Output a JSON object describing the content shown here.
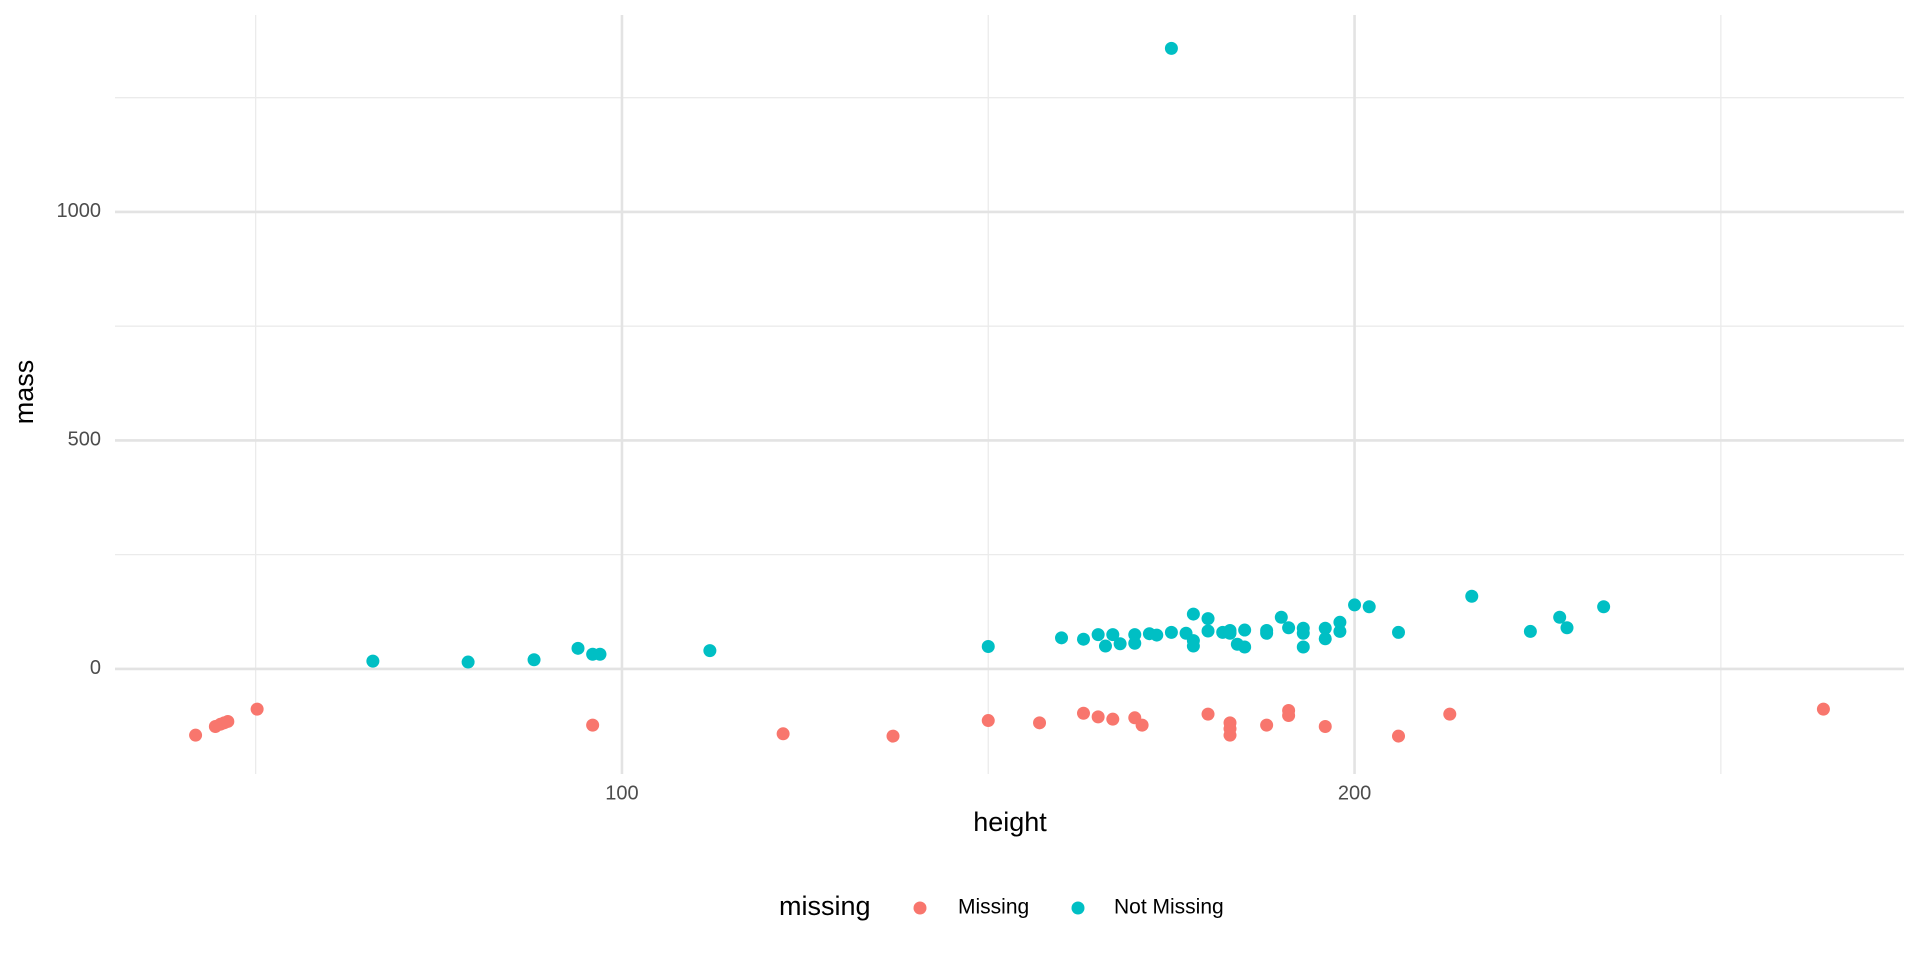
{
  "chart_data": {
    "type": "scatter",
    "x_label": "height",
    "y_label": "mass",
    "legend_title": "missing",
    "legend": "bottom",
    "grid": true,
    "xlim": [
      30.8,
      275
    ],
    "ylim": [
      -230,
      1431
    ],
    "xticks": [
      100,
      200
    ],
    "yticks": [
      0,
      500,
      1000
    ],
    "xminor": [
      50,
      150,
      250
    ],
    "yminor": [
      250,
      750,
      1250
    ],
    "series": [
      {
        "name": "Missing",
        "color": "#F8766D",
        "x": [
          41.8,
          44.5,
          45.2,
          45.7,
          46.2,
          50.2,
          96,
          122,
          137,
          150,
          157,
          163,
          165,
          167,
          170,
          171,
          180,
          183,
          183,
          183,
          188,
          191,
          191,
          196,
          206,
          213,
          264
        ],
        "values": [
          -145,
          -126,
          -121,
          -118,
          -115,
          -88,
          -123,
          -142,
          -147,
          -113,
          -118,
          -97,
          -105,
          -110,
          -107,
          -123,
          -99,
          -118,
          -131,
          -145,
          -123,
          -91,
          -102,
          -126,
          -147,
          -99,
          -88
        ]
      },
      {
        "name": "Not Missing",
        "color": "#00BFC4",
        "x": [
          66,
          79,
          88,
          94,
          96,
          97,
          112,
          150,
          160,
          163,
          165,
          166,
          167,
          168,
          170,
          170,
          172,
          173,
          175,
          175,
          177,
          178,
          178,
          178,
          180,
          180,
          182,
          183,
          183,
          184,
          185,
          185,
          188,
          188,
          190,
          191,
          193,
          193,
          193,
          196,
          196,
          198,
          198,
          200,
          202,
          206,
          216,
          224,
          228,
          229,
          234
        ],
        "values": [
          17,
          15,
          20,
          45,
          32,
          32,
          40,
          49,
          68,
          65,
          75,
          50,
          75,
          55,
          75,
          56,
          77,
          74,
          1358,
          80,
          78,
          120,
          62,
          50,
          110,
          83,
          80,
          84,
          78,
          54,
          48,
          85,
          84,
          78,
          113,
          90,
          89,
          78,
          48,
          89,
          66,
          102,
          82,
          140,
          136,
          80,
          159,
          82,
          113,
          90,
          136
        ]
      }
    ]
  }
}
